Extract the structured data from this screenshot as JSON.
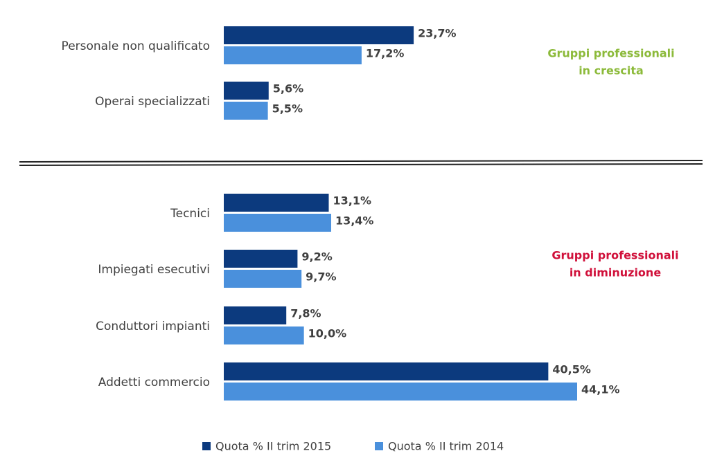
{
  "chart_data": {
    "type": "bar",
    "orientation": "horizontal",
    "categories": [
      "Personale non qualificato",
      "Operai specializzati",
      "Tecnici",
      "Impiegati esecutivi",
      "Conduttori impianti",
      "Addetti commercio"
    ],
    "series": [
      {
        "name": "Quota % II trim 2015",
        "color": "#0c3a7e",
        "values": [
          23.7,
          5.6,
          13.1,
          9.2,
          7.8,
          40.5
        ],
        "value_labels": [
          "23,7%",
          "5,6%",
          "13,1%",
          "9,2%",
          "7,8%",
          "40,5%"
        ]
      },
      {
        "name": "Quota % II trim 2014",
        "color": "#4a90dc",
        "values": [
          17.2,
          5.5,
          13.4,
          9.7,
          10.0,
          44.1
        ],
        "value_labels": [
          "17,2%",
          "5,5%",
          "13,4%",
          "9,7%",
          "10,0%",
          "44,1%"
        ]
      }
    ],
    "annotations": [
      {
        "lines": [
          "Gruppi professionali",
          "in crescita"
        ],
        "color": "#8cba3a"
      },
      {
        "lines": [
          "Gruppi professionali",
          "in diminuzione"
        ],
        "color": "#d0103a"
      }
    ],
    "legend": "bottom"
  }
}
